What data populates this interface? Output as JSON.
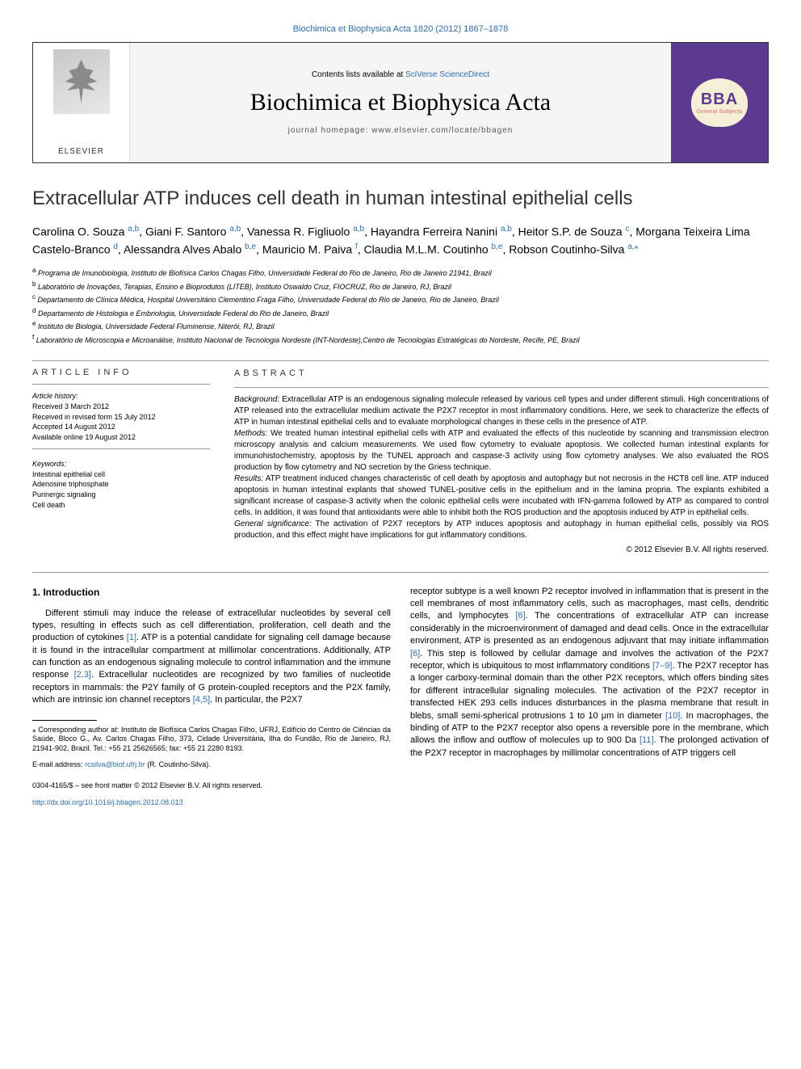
{
  "header_link": "Biochimica et Biophysica Acta 1820 (2012) 1867–1878",
  "masthead": {
    "elsevier": "ELSEVIER",
    "contents_prefix": "Contents lists available at ",
    "contents_link": "SciVerse ScienceDirect",
    "journal_title": "Biochimica et Biophysica Acta",
    "homepage": "journal homepage: www.elsevier.com/locate/bbagen",
    "bba": "BBA",
    "bba_sub": "General Subjects"
  },
  "title": "Extracellular ATP induces cell death in human intestinal epithelial cells",
  "authors": {
    "a1": "Carolina O. Souza ",
    "a1s": "a,b",
    "a2": ", Giani F. Santoro ",
    "a2s": "a,b",
    "a3": ", Vanessa R. Figliuolo ",
    "a3s": "a,b",
    "a4": ", Hayandra Ferreira Nanini ",
    "a4s": "a,b",
    "a5": ", Heitor S.P. de Souza ",
    "a5s": "c",
    "a6": ", Morgana Teixeira Lima Castelo-Branco ",
    "a6s": "d",
    "a7": ", Alessandra Alves Abalo ",
    "a7s": "b,e",
    "a8": ", Mauricio M. Paiva ",
    "a8s": "f",
    "a9": ", Claudia M.L.M. Coutinho ",
    "a9s": "b,e",
    "a10": ", Robson Coutinho-Silva ",
    "a10s": "a,",
    "corr": "⁎"
  },
  "affiliations": {
    "a": "Programa de Imunobiologia, Instituto de Biofísica Carlos Chagas Filho, Universidade Federal do Rio de Janeiro, Rio de Janeiro 21941, Brazil",
    "b": "Laboratório de Inovações, Terapias, Ensino e Bioprodutos (LITEB), Instituto Oswaldo Cruz, FIOCRUZ, Rio de Janeiro, RJ, Brazil",
    "c": "Departamento de Clínica Médica, Hospital Universitário Clementino Fraga Filho, Universidade Federal do Rio de Janeiro, Rio de Janeiro, Brazil",
    "d": "Departamento de Histologia e Embriologia, Universidade Federal do Rio de Janeiro, Brazil",
    "e": "Instituto de Biologia, Universidade Federal Fluminense, Niterói, RJ, Brazil",
    "f": "Laboratório de Microscopia e Microanálise, Instituto Nacional de Tecnologia Nordeste (INT-Nordeste),Centro de Tecnologias Estratégicas do Nordeste, Recife, PE, Brazil"
  },
  "info": {
    "heading_info": "article info",
    "heading_abstract": "abstract",
    "history_label": "Article history:",
    "received": "Received 3 March 2012",
    "revised": "Received in revised form 15 July 2012",
    "accepted": "Accepted 14 August 2012",
    "online": "Available online 19 August 2012",
    "keywords_label": "Keywords:",
    "kw1": "Intestinal epithelial cell",
    "kw2": "Adenosine triphosphate",
    "kw3": "Purinergic signaling",
    "kw4": "Cell death"
  },
  "abstract": {
    "bg_label": "Background:",
    "bg": " Extracellular ATP is an endogenous signaling molecule released by various cell types and under different stimuli. High concentrations of ATP released into the extracellular medium activate the P2X7 receptor in most inflammatory conditions. Here, we seek to characterize the effects of ATP in human intestinal epithelial cells and to evaluate morphological changes in these cells in the presence of ATP.",
    "me_label": "Methods:",
    "me": " We treated human intestinal epithelial cells with ATP and evaluated the effects of this nucleotide by scanning and transmission electron microscopy analysis and calcium measurements. We used flow cytometry to evaluate apoptosis. We collected human intestinal explants for immunohistochemistry, apoptosis by the TUNEL approach and caspase-3 activity using flow cytometry analyses. We also evaluated the ROS production by flow cytometry and NO secretion by the Griess technique.",
    "re_label": "Results:",
    "re": " ATP treatment induced changes characteristic of cell death by apoptosis and autophagy but not necrosis in the HCT8 cell line. ATP induced apoptosis in human intestinal explants that showed TUNEL-positive cells in the epithelium and in the lamina propria. The explants exhibited a significant increase of caspase-3 activity when the colonic epithelial cells were incubated with IFN-gamma followed by ATP as compared to control cells. In addition, it was found that antioxidants were able to inhibit both the ROS production and the apoptosis induced by ATP in epithelial cells.",
    "gs_label": "General significance:",
    "gs": " The activation of P2X7 receptors by ATP induces apoptosis and autophagy in human epithelial cells, possibly via ROS production, and this effect might have implications for gut inflammatory conditions.",
    "copyright": "© 2012 Elsevier B.V. All rights reserved."
  },
  "body": {
    "intro_heading": "1. Introduction",
    "p1a": "Different stimuli may induce the release of extracellular nucleotides by several cell types, resulting in effects such as cell differentiation, proliferation, cell death and the production of cytokines ",
    "c1": "[1]",
    "p1b": ". ATP is a potential candidate for signaling cell damage because it is found in the intracellular compartment at millimolar concentrations. Additionally, ATP can function as an endogenous signaling molecule to control inflammation and the immune response ",
    "c2": "[2,3]",
    "p1c": ". Extracellular nucleotides are recognized by two families of nucleotide receptors in mammals: the P2Y family of G protein-coupled receptors and the P2X family, which are intrinsic ion channel receptors ",
    "c3": "[4,5]",
    "p1d": ". In particular, the P2X7",
    "p2a": "receptor subtype is a well known P2 receptor involved in inflammation that is present in the cell membranes of most inflammatory cells, such as macrophages, mast cells, dendritic cells, and lymphocytes ",
    "c4": "[6]",
    "p2b": ". The concentrations of extracellular ATP can increase considerably in the microenvironment of damaged and dead cells. Once in the extracellular environment, ATP is presented as an endogenous adjuvant that may initiate inflammation ",
    "c5": "[6]",
    "p2c": ". This step is followed by cellular damage and involves the activation of the P2X7 receptor, which is ubiquitous to most inflammatory conditions ",
    "c6": "[7–9]",
    "p2d": ". The P2X7 receptor has a longer carboxy-terminal domain than the other P2X receptors, which offers binding sites for different intracellular signaling molecules. The activation of the P2X7 receptor in transfected HEK 293 cells induces disturbances in the plasma membrane that result in blebs, small semi-spherical protrusions 1 to 10 μm in diameter ",
    "c7": "[10]",
    "p2e": ". In macrophages, the binding of ATP to the P2X7 receptor also opens a reversible pore in the membrane, which allows the inflow and outflow of molecules up to 900 Da ",
    "c8": "[11]",
    "p2f": ". The prolonged activation of the P2X7 receptor in macrophages by millimolar concentrations of ATP triggers cell"
  },
  "footnotes": {
    "corr": "⁎ Corresponding author at: Instituto de Biofísica Carlos Chagas Filho, UFRJ, Edifício do Centro de Ciências da Saúde, Bloco G., Av. Carlos Chagas Filho, 373, Cidade Universitária, Ilha do Fundão, Rio de Janeiro, RJ, 21941-902, Brazil. Tel.: +55 21 25626565; fax: +55 21 2280 8193.",
    "email_label": "E-mail address: ",
    "email": "rcsilva@biof.ufrj.br",
    "email_suffix": " (R. Coutinho-Silva)."
  },
  "footer": {
    "front": "0304-4165/$ – see front matter © 2012 Elsevier B.V. All rights reserved.",
    "doi": "http://dx.doi.org/10.1016/j.bbagen.2012.08.013"
  },
  "colors": {
    "link": "#2a6ebb",
    "purple": "#5b3a8f",
    "text": "#000000",
    "bg": "#ffffff"
  }
}
